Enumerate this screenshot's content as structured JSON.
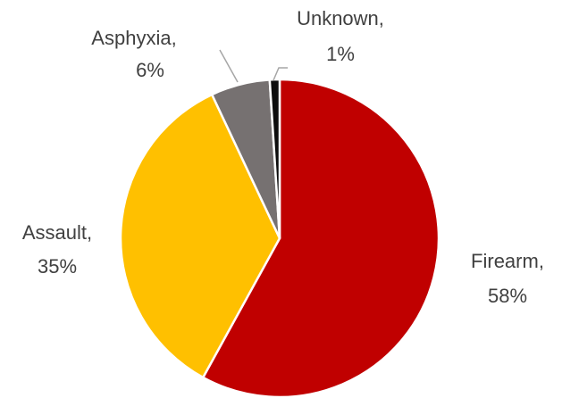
{
  "chart_data": {
    "type": "pie",
    "categories": [
      "Firearm,",
      "Assault,",
      "Asphyxia,",
      "Unknown,"
    ],
    "values": [
      58,
      35,
      6,
      1
    ],
    "value_labels": [
      "58%",
      "35%",
      "6%",
      "1%"
    ],
    "colors": [
      "#c00000",
      "#ffc000",
      "#767171",
      "#0d0d0d"
    ]
  }
}
